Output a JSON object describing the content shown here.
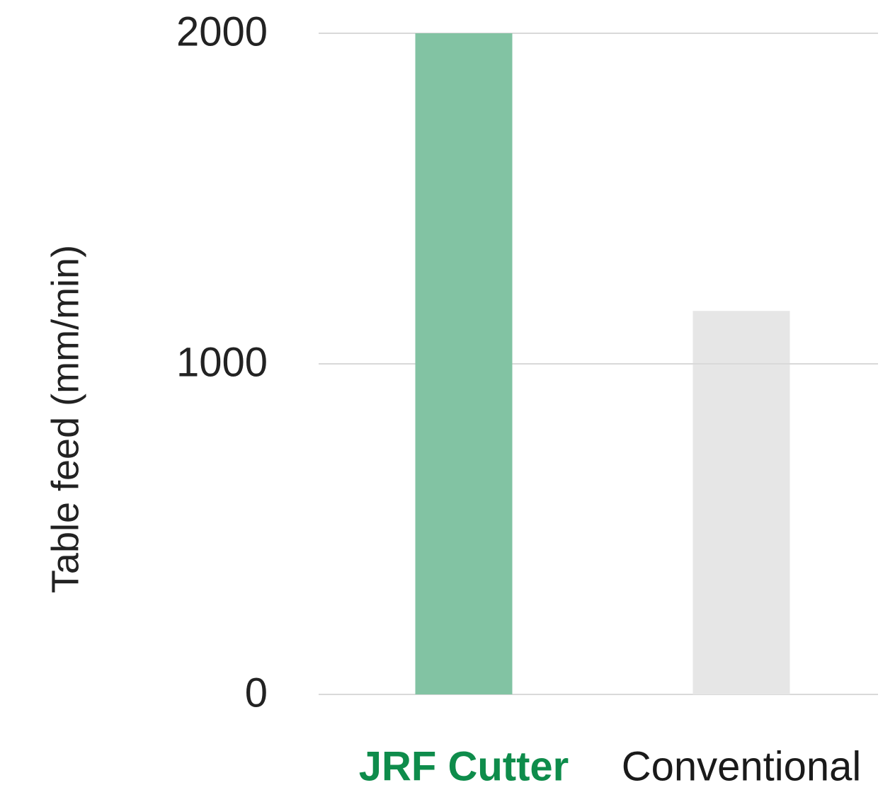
{
  "chart_data": {
    "type": "bar",
    "categories": [
      "JRF Cutter",
      "Conventional"
    ],
    "values": [
      2000,
      1160
    ],
    "title": "",
    "xlabel": "",
    "ylabel": "Table feed (mm/min)",
    "ylim": [
      0,
      2000
    ],
    "yticks": [
      0,
      1000,
      2000
    ],
    "grid": true,
    "legend": "none",
    "colors": {
      "bars": [
        "#82c3a3",
        "#e6e6e6"
      ],
      "category_labels": [
        "#0e8c4b",
        "#1a1a1a"
      ],
      "gridlines": "#d9d9d9"
    }
  }
}
